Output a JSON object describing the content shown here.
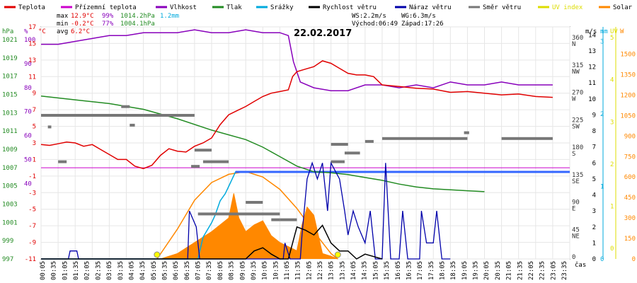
{
  "chart_data": {
    "type": "line",
    "title": "22.02.2017",
    "legend": [
      {
        "name": "Teplota",
        "color": "#e00000"
      },
      {
        "name": "Přízemní teplota",
        "color": "#cc00cc"
      },
      {
        "name": "Vlhkost",
        "color": "#8800bb"
      },
      {
        "name": "Tlak",
        "color": "#228b22"
      },
      {
        "name": "Srážky",
        "color": "#00aadd"
      },
      {
        "name": "Rychlost větru",
        "color": "#000000"
      },
      {
        "name": "Náraz větru",
        "color": "#0000aa"
      },
      {
        "name": "Směr větru",
        "color": "#777777"
      },
      {
        "name": "UV index",
        "color": "#dddd00"
      },
      {
        "name": "Solar",
        "color": "#ff8800"
      }
    ],
    "stats": {
      "max": {
        "label": "max",
        "temp": "12.9°C",
        "hum": "99%",
        "press": "1014.2hPa",
        "rain": "1.2mm"
      },
      "min": {
        "label": "min",
        "temp": "-0.2°C",
        "hum": "77%",
        "press": "1004.1hPa"
      },
      "avg": {
        "label": "avg",
        "temp": "6.2°C"
      },
      "wind": {
        "ws": "WS:2.2m/s",
        "wg": "WG:6.3m/s",
        "sunrise": "Východ:06:49",
        "sunset": "Západ:17:26"
      }
    },
    "axes": {
      "hpa": {
        "unit": "hPa",
        "ticks": [
          "1021",
          "1019",
          "1017",
          "1015",
          "1013",
          "1011",
          "1009",
          "1007",
          "1005",
          "1003",
          "1001",
          "999",
          "997"
        ]
      },
      "pct": {
        "unit": "%",
        "ticks": [
          "100",
          "90",
          "80",
          "70",
          "60",
          "50",
          "40"
        ]
      },
      "temp": {
        "unit": "°C",
        "ticks": [
          "17",
          "15",
          "13",
          "11",
          "9",
          "7",
          "5",
          "3",
          "1",
          "-1",
          "-3",
          "-5",
          "-7",
          "-9",
          "-11"
        ]
      },
      "dir": {
        "ticks": [
          {
            "deg": "360",
            "d": "N"
          },
          {
            "deg": "315",
            "d": "NW"
          },
          {
            "deg": "270",
            "d": "W"
          },
          {
            "deg": "225",
            "d": "SW"
          },
          {
            "deg": "180",
            "d": "S"
          },
          {
            "deg": "135",
            "d": "SE"
          },
          {
            "deg": "90",
            "d": "E"
          },
          {
            "deg": "45",
            "d": "NE"
          },
          {
            "deg": "0",
            "d": ""
          }
        ]
      },
      "ms": {
        "unit": "m/s",
        "ticks": [
          "14",
          "13",
          "12",
          "11",
          "10",
          "9",
          "8",
          "7",
          "6",
          "5",
          "4",
          "3",
          "2",
          "1",
          "0"
        ]
      },
      "mm": {
        "unit": "mm",
        "ticks": [
          "3",
          "2",
          "1",
          "0"
        ]
      },
      "uv": {
        "unit": "UV",
        "ticks": [
          "5",
          "4",
          "3",
          "2",
          "1",
          "0"
        ]
      },
      "solar": {
        "unit": "W",
        "ticks": [
          "1500",
          "1350",
          "1200",
          "1050",
          "900",
          "750",
          "600",
          "450",
          "300",
          "150",
          "0"
        ]
      },
      "x": {
        "label": "čas",
        "ticks": [
          "00:05",
          "00:35",
          "01:05",
          "01:35",
          "02:05",
          "02:35",
          "03:05",
          "03:35",
          "04:05",
          "04:35",
          "05:05",
          "05:35",
          "06:05",
          "06:35",
          "07:05",
          "07:35",
          "08:05",
          "08:35",
          "09:05",
          "09:35",
          "10:05",
          "10:35",
          "11:05",
          "11:35",
          "12:05",
          "12:35",
          "13:05",
          "13:35",
          "14:05",
          "14:35",
          "15:05",
          "15:35",
          "16:05",
          "16:35",
          "17:05",
          "17:35",
          "18:05",
          "18:35",
          "19:05",
          "19:35",
          "20:05",
          "20:35",
          "21:05",
          "21:35",
          "22:05",
          "22:35",
          "23:05",
          "23:35"
        ]
      }
    },
    "series": {
      "temperature_C": [
        [
          0,
          2.8
        ],
        [
          0.5,
          2.7
        ],
        [
          1,
          2.9
        ],
        [
          1.5,
          3.1
        ],
        [
          2,
          3.0
        ],
        [
          2.5,
          2.6
        ],
        [
          3,
          2.8
        ],
        [
          3.5,
          2.2
        ],
        [
          4,
          1.6
        ],
        [
          4.5,
          1.0
        ],
        [
          5,
          1.0
        ],
        [
          5.5,
          0.2
        ],
        [
          6,
          -0.1
        ],
        [
          6.5,
          0.3
        ],
        [
          7,
          1.5
        ],
        [
          7.5,
          2.3
        ],
        [
          8,
          2.0
        ],
        [
          8.5,
          1.9
        ],
        [
          9,
          2.6
        ],
        [
          9.5,
          3.0
        ],
        [
          10,
          3.6
        ],
        [
          10.5,
          5.2
        ],
        [
          11,
          6.4
        ],
        [
          11.5,
          6.9
        ],
        [
          12,
          7.4
        ],
        [
          12.5,
          8.0
        ],
        [
          13,
          8.6
        ],
        [
          13.5,
          9.0
        ],
        [
          14,
          9.2
        ],
        [
          14.5,
          9.4
        ],
        [
          14.75,
          11.0
        ],
        [
          15,
          11.6
        ],
        [
          15.5,
          11.9
        ],
        [
          16,
          12.2
        ],
        [
          16.5,
          12.9
        ],
        [
          17,
          12.6
        ],
        [
          17.5,
          12.0
        ],
        [
          18,
          11.4
        ],
        [
          18.5,
          11.2
        ],
        [
          19,
          11.2
        ],
        [
          19.5,
          11.0
        ],
        [
          20,
          10.0
        ],
        [
          21,
          9.8
        ],
        [
          22,
          9.6
        ],
        [
          23,
          9.5
        ],
        [
          24,
          9.1
        ],
        [
          25,
          9.2
        ],
        [
          26,
          9.0
        ],
        [
          27,
          8.8
        ],
        [
          28,
          8.9
        ],
        [
          29,
          8.6
        ],
        [
          30,
          8.5
        ]
      ],
      "humidity_pct": [
        [
          0,
          94
        ],
        [
          1,
          94
        ],
        [
          2,
          95
        ],
        [
          3,
          96
        ],
        [
          4,
          97
        ],
        [
          5,
          97
        ],
        [
          6,
          98
        ],
        [
          7,
          98
        ],
        [
          8,
          98
        ],
        [
          9,
          99
        ],
        [
          10,
          98
        ],
        [
          11,
          98
        ],
        [
          12,
          99
        ],
        [
          13,
          98
        ],
        [
          14,
          98
        ],
        [
          14.5,
          97
        ],
        [
          14.8,
          88
        ],
        [
          15.2,
          81
        ],
        [
          16,
          79
        ],
        [
          17,
          78
        ],
        [
          18,
          78
        ],
        [
          19,
          80
        ],
        [
          20,
          80
        ],
        [
          21,
          79
        ],
        [
          22,
          80
        ],
        [
          23,
          79
        ],
        [
          24,
          81
        ],
        [
          25,
          80
        ],
        [
          26,
          80
        ],
        [
          27,
          81
        ],
        [
          28,
          80
        ],
        [
          29,
          80
        ],
        [
          30,
          80
        ]
      ],
      "pressure_hPa": [
        [
          0,
          1014.2
        ],
        [
          2,
          1013.8
        ],
        [
          4,
          1013.4
        ],
        [
          6,
          1012.8
        ],
        [
          8,
          1011.8
        ],
        [
          10,
          1010.6
        ],
        [
          12,
          1009.6
        ],
        [
          13,
          1008.8
        ],
        [
          14,
          1007.8
        ],
        [
          15,
          1006.8
        ],
        [
          16,
          1006.2
        ],
        [
          17,
          1006.1
        ],
        [
          18,
          1005.9
        ],
        [
          19,
          1005.6
        ],
        [
          20,
          1005.3
        ],
        [
          21,
          1004.9
        ],
        [
          22,
          1004.6
        ],
        [
          23,
          1004.4
        ],
        [
          24,
          1004.3
        ],
        [
          25,
          1004.2
        ],
        [
          26,
          1004.1
        ]
      ],
      "rain_mm": [
        [
          0,
          0
        ],
        [
          9.2,
          0
        ],
        [
          9.5,
          0.3
        ],
        [
          10,
          0.5
        ],
        [
          10.2,
          0.6
        ],
        [
          10.5,
          0.8
        ],
        [
          10.8,
          0.9
        ],
        [
          11,
          1.0
        ],
        [
          11.2,
          1.1
        ],
        [
          11.4,
          1.2
        ],
        [
          24,
          1.2
        ]
      ],
      "wind_speed_ms": [
        [
          0,
          0
        ],
        [
          12,
          0
        ],
        [
          12.5,
          0.5
        ],
        [
          13,
          0.7
        ],
        [
          13.5,
          0.3
        ],
        [
          14,
          0
        ],
        [
          14.5,
          0
        ],
        [
          15,
          2
        ],
        [
          15.5,
          1.8
        ],
        [
          16,
          1.5
        ],
        [
          16.5,
          2.1
        ],
        [
          17,
          1.0
        ],
        [
          17.5,
          0.5
        ],
        [
          18,
          0.5
        ],
        [
          18.5,
          0
        ],
        [
          19,
          0.3
        ],
        [
          20,
          0
        ]
      ],
      "wind_gust_ms": [
        [
          0,
          0
        ],
        [
          1.6,
          0
        ],
        [
          1.7,
          0.5
        ],
        [
          2.1,
          0.5
        ],
        [
          2.2,
          0
        ],
        [
          8.6,
          0
        ],
        [
          8.7,
          3
        ],
        [
          9.1,
          2
        ],
        [
          9.3,
          0
        ],
        [
          14.2,
          0
        ],
        [
          14.3,
          1
        ],
        [
          14.6,
          0
        ],
        [
          15.2,
          0
        ],
        [
          15.3,
          1.5
        ],
        [
          15.6,
          5
        ],
        [
          15.9,
          6
        ],
        [
          16.2,
          5
        ],
        [
          16.5,
          6
        ],
        [
          16.8,
          3
        ],
        [
          17,
          6
        ],
        [
          17.5,
          5
        ],
        [
          17.8,
          3
        ],
        [
          18,
          1.5
        ],
        [
          18.3,
          3
        ],
        [
          18.6,
          2
        ],
        [
          19,
          1
        ],
        [
          19.3,
          3
        ],
        [
          19.6,
          0
        ],
        [
          20,
          0
        ],
        [
          20.2,
          6
        ],
        [
          20.5,
          0
        ],
        [
          21,
          0
        ],
        [
          21.2,
          3
        ],
        [
          21.5,
          0
        ],
        [
          22.2,
          0
        ],
        [
          22.3,
          3
        ],
        [
          22.6,
          1
        ],
        [
          23,
          1
        ],
        [
          23.2,
          3
        ],
        [
          23.5,
          0
        ],
        [
          24,
          0
        ]
      ],
      "solar_W": [
        [
          7,
          0
        ],
        [
          8,
          40
        ],
        [
          9,
          120
        ],
        [
          10,
          200
        ],
        [
          11,
          300
        ],
        [
          11.3,
          480
        ],
        [
          11.6,
          300
        ],
        [
          12,
          200
        ],
        [
          12.5,
          250
        ],
        [
          13,
          280
        ],
        [
          13.5,
          170
        ],
        [
          14,
          120
        ],
        [
          15,
          60
        ],
        [
          15.3,
          250
        ],
        [
          15.6,
          380
        ],
        [
          16,
          320
        ],
        [
          16.3,
          150
        ],
        [
          16.5,
          40
        ],
        [
          17,
          20
        ],
        [
          17.4,
          0
        ]
      ],
      "solar_theoretical_W": [
        [
          6.8,
          0
        ],
        [
          8,
          220
        ],
        [
          9,
          430
        ],
        [
          10,
          560
        ],
        [
          11,
          620
        ],
        [
          12,
          640
        ],
        [
          13,
          600
        ],
        [
          14,
          510
        ],
        [
          15,
          370
        ],
        [
          16,
          200
        ],
        [
          17,
          40
        ],
        [
          17.4,
          0
        ]
      ]
    }
  }
}
